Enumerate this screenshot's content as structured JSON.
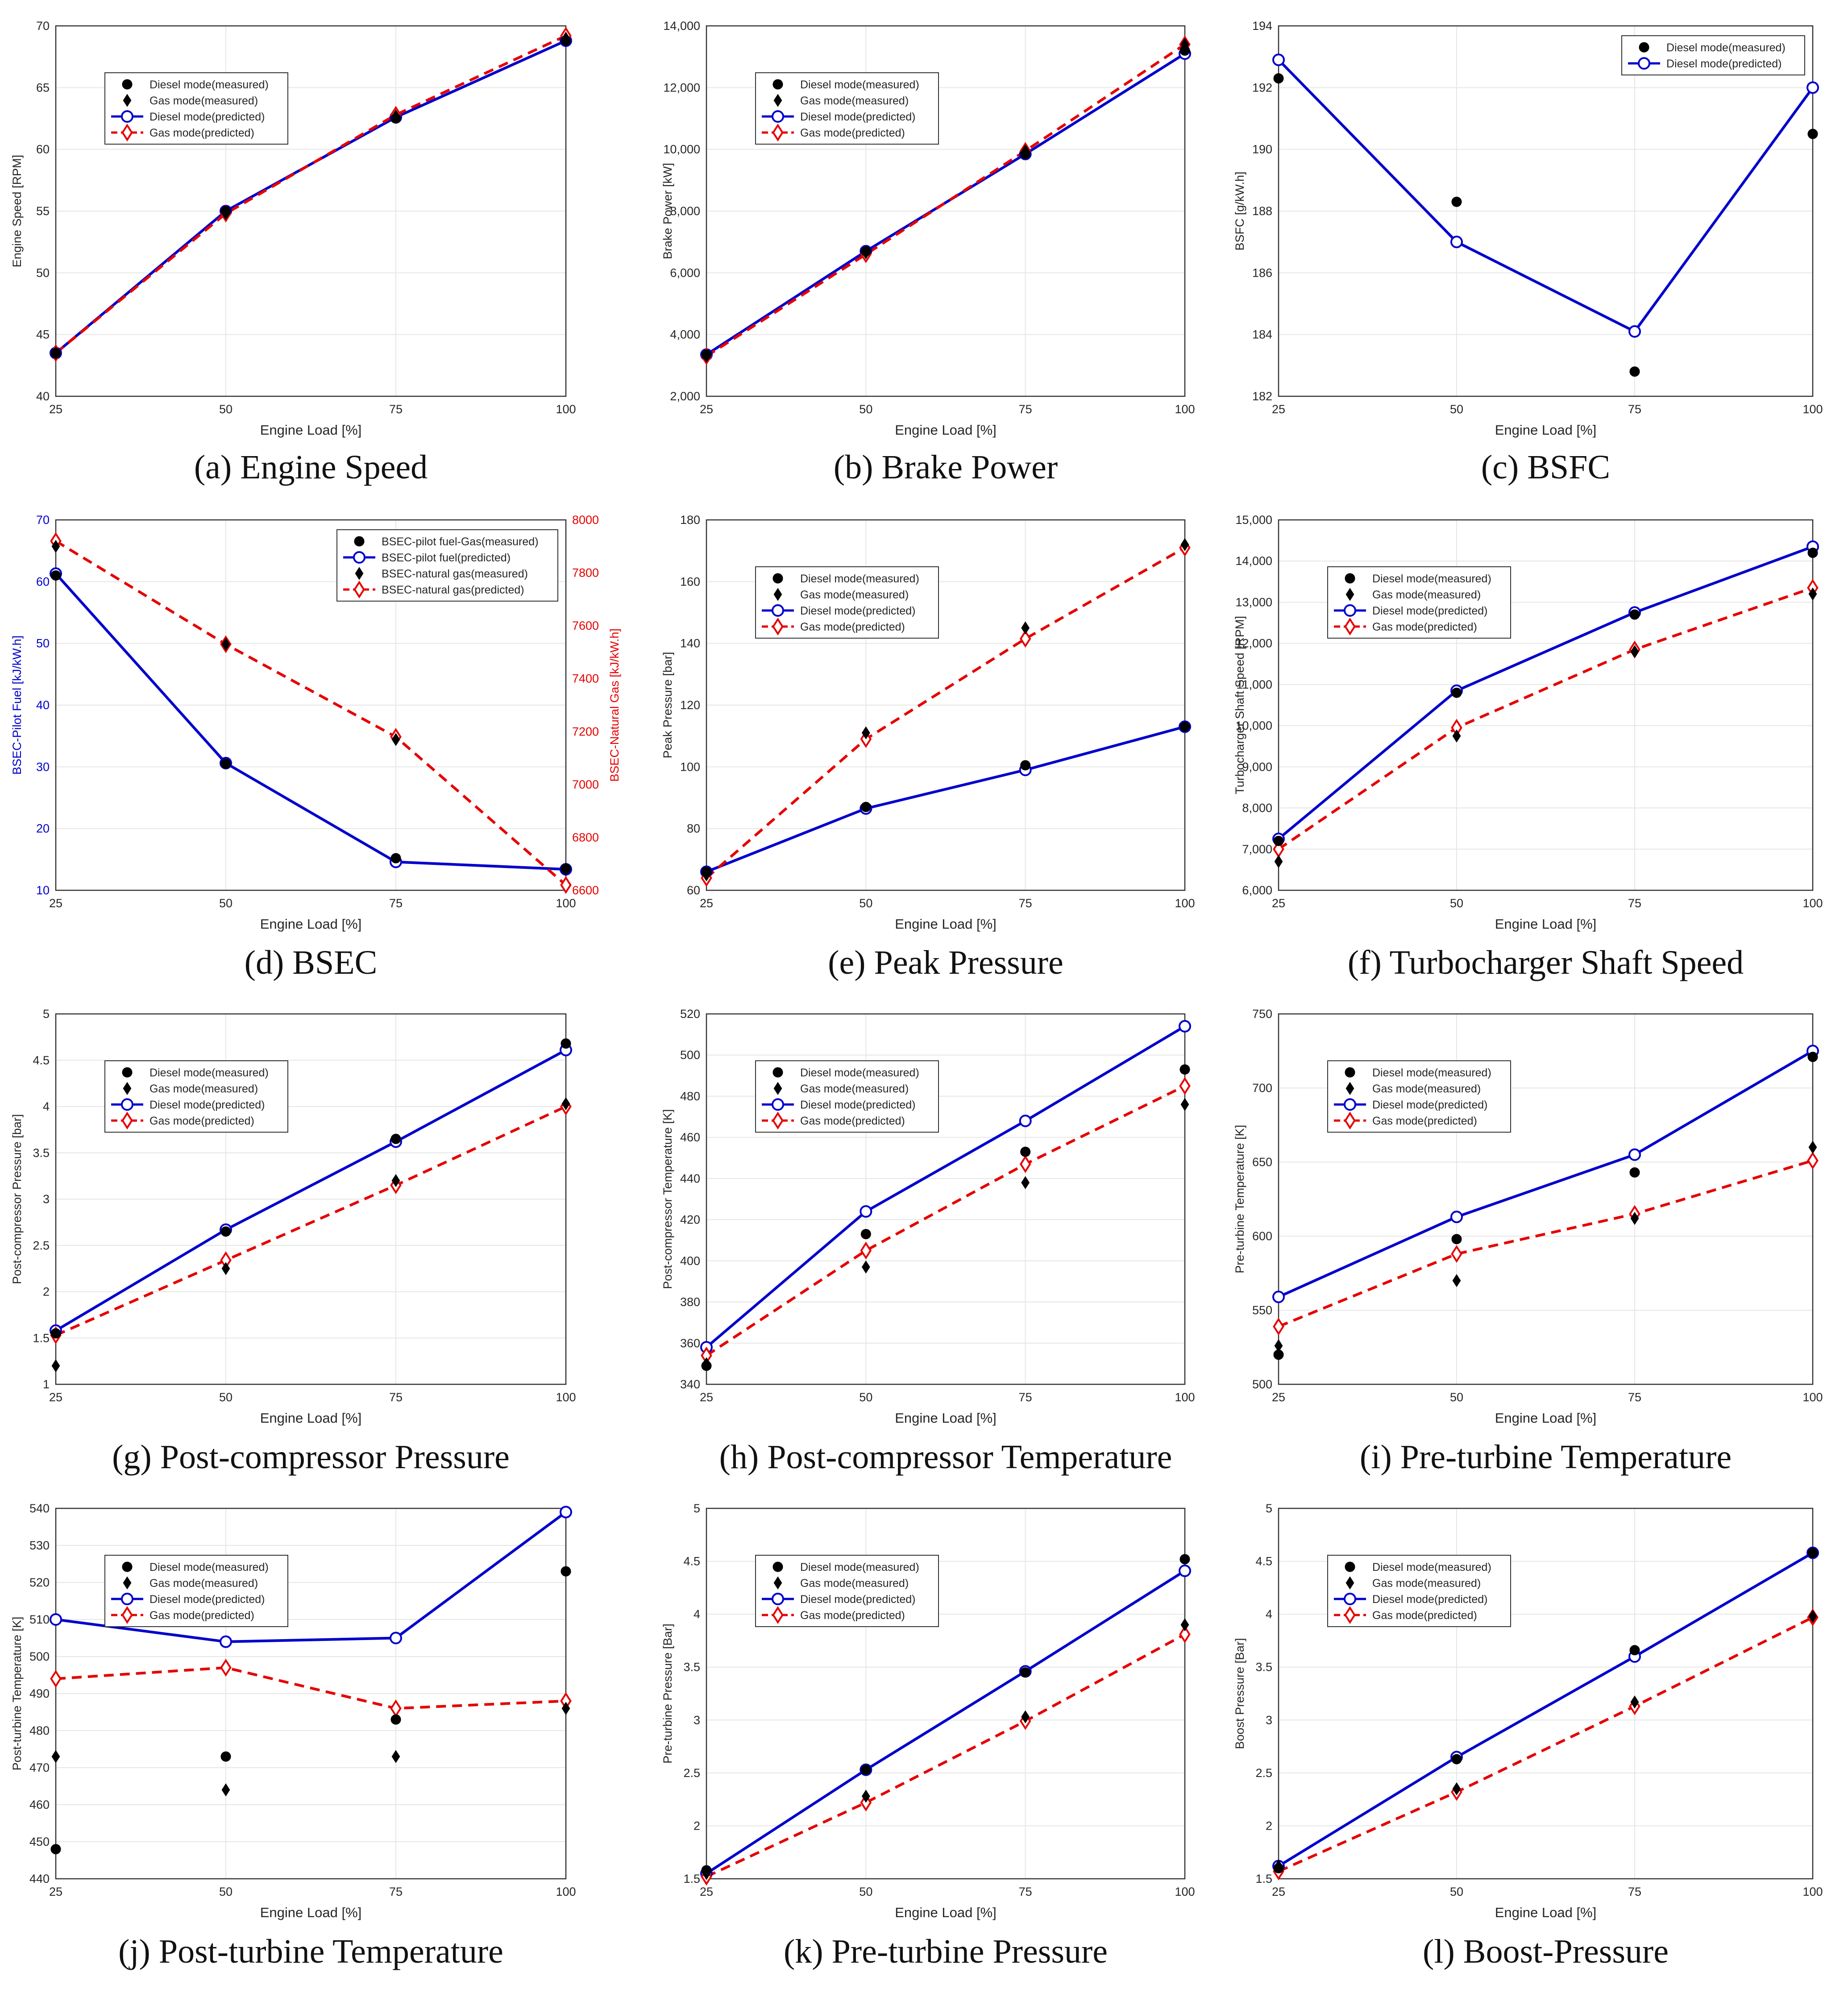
{
  "figure": {
    "background": "#ffffff"
  },
  "colors": {
    "diesel_pred": "#0000cc",
    "gas_pred": "#e60000",
    "measured": "#000000",
    "axis": "#333333",
    "grid": "#e6e6e6"
  },
  "chart_data": [
    {
      "id": "a",
      "type": "line",
      "caption": "(a) Engine Speed",
      "xlabel": "Engine Load [%]",
      "ylabel": "Engine Speed [RPM]",
      "x": [
        25,
        50,
        75,
        100
      ],
      "xticks": [
        "25",
        "50",
        "75",
        "100"
      ],
      "ylim": [
        40,
        70
      ],
      "yticks": [
        "40",
        "45",
        "50",
        "55",
        "60",
        "65",
        "70"
      ],
      "legend_position": "upper-left",
      "series": [
        {
          "name": "Diesel mode(measured)",
          "marker": "circle",
          "values": [
            43.5,
            55.0,
            62.5,
            68.8
          ]
        },
        {
          "name": "Gas mode(measured)",
          "marker": "diamond",
          "values": [
            43.5,
            54.8,
            62.7,
            69.0
          ]
        },
        {
          "name": "Diesel mode(predicted)",
          "marker": "circle-open",
          "line": "solid",
          "values": [
            43.5,
            55.0,
            62.6,
            68.8
          ]
        },
        {
          "name": "Gas mode(predicted)",
          "marker": "diamond-open",
          "line": "dashed",
          "values": [
            43.5,
            54.8,
            62.8,
            69.2
          ]
        }
      ]
    },
    {
      "id": "b",
      "type": "line",
      "caption": "(b) Brake Power",
      "xlabel": "Engine Load [%]",
      "ylabel": "Brake Power [kW]",
      "x": [
        25,
        50,
        75,
        100
      ],
      "xticks": [
        "25",
        "50",
        "75",
        "100"
      ],
      "ylim": [
        2000,
        14000
      ],
      "yticks": [
        "2,000",
        "4,000",
        "6,000",
        "8,000",
        "10,000",
        "12,000",
        "14,000"
      ],
      "legend_position": "upper-left",
      "series": [
        {
          "name": "Diesel mode(measured)",
          "marker": "circle",
          "values": [
            3350,
            6700,
            9850,
            13200
          ]
        },
        {
          "name": "Gas mode(measured)",
          "marker": "diamond",
          "values": [
            3300,
            6650,
            9950,
            13400
          ]
        },
        {
          "name": "Diesel mode(predicted)",
          "marker": "circle-open",
          "line": "solid",
          "values": [
            3350,
            6700,
            9850,
            13100
          ]
        },
        {
          "name": "Gas mode(predicted)",
          "marker": "diamond-open",
          "line": "dashed",
          "values": [
            3300,
            6600,
            9950,
            13400
          ]
        }
      ]
    },
    {
      "id": "c",
      "type": "line",
      "caption": "(c) BSFC",
      "xlabel": "Engine Load [%]",
      "ylabel": "BSFC [g/kW.h]",
      "x": [
        25,
        50,
        75,
        100
      ],
      "xticks": [
        "25",
        "50",
        "75",
        "100"
      ],
      "ylim": [
        182,
        194
      ],
      "yticks": [
        "182",
        "184",
        "186",
        "188",
        "190",
        "192",
        "194"
      ],
      "legend_position": "upper-right",
      "series": [
        {
          "name": "Diesel mode(measured)",
          "marker": "circle",
          "values": [
            192.3,
            188.3,
            182.8,
            190.5
          ]
        },
        {
          "name": "Diesel mode(predicted)",
          "marker": "circle-open",
          "line": "solid",
          "values": [
            192.9,
            187.0,
            184.1,
            192.0
          ]
        }
      ]
    },
    {
      "id": "d",
      "type": "line",
      "caption": "(d) BSEC",
      "xlabel": "Engine Load [%]",
      "ylabel": "BSEC-Pilot Fuel [kJ/kW.h]",
      "ylabel_right": "BSEC-Natural Gas [kJ/kW.h]",
      "x": [
        25,
        50,
        75,
        100
      ],
      "xticks": [
        "25",
        "50",
        "75",
        "100"
      ],
      "ylim": [
        10,
        70
      ],
      "yticks": [
        "10",
        "20",
        "30",
        "40",
        "50",
        "60",
        "70"
      ],
      "ylim_right": [
        6600,
        8000
      ],
      "yticks_right": [
        "6600",
        "6800",
        "7000",
        "7200",
        "7400",
        "7600",
        "7800",
        "8000"
      ],
      "legend_position": "upper-right",
      "series": [
        {
          "name": "BSEC-pilot fuel-Gas(measured)",
          "marker": "circle",
          "axis": "left",
          "values": [
            61.0,
            30.5,
            15.2,
            13.5
          ]
        },
        {
          "name": "BSEC-pilot fuel(predicted)",
          "marker": "circle-open",
          "line": "solid",
          "axis": "left",
          "values": [
            61.3,
            30.6,
            14.6,
            13.4
          ]
        },
        {
          "name": "BSEC-natural gas(measured)",
          "marker": "diamond",
          "axis": "right",
          "values": [
            7900,
            7530,
            7170,
            6680
          ]
        },
        {
          "name": "BSEC-natural gas(predicted)",
          "marker": "diamond-open",
          "line": "dashed",
          "axis": "right",
          "values": [
            7920,
            7530,
            7180,
            6620
          ]
        }
      ]
    },
    {
      "id": "e",
      "type": "line",
      "caption": "(e) Peak Pressure",
      "xlabel": "Engine Load [%]",
      "ylabel": "Peak Pressure [bar]",
      "x": [
        25,
        50,
        75,
        100
      ],
      "xticks": [
        "25",
        "50",
        "75",
        "100"
      ],
      "ylim": [
        60,
        180
      ],
      "yticks": [
        "60",
        "80",
        "100",
        "120",
        "140",
        "160",
        "180"
      ],
      "legend_position": "upper-left",
      "series": [
        {
          "name": "Diesel mode(measured)",
          "marker": "circle",
          "values": [
            66,
            87,
            100.5,
            113
          ]
        },
        {
          "name": "Gas mode(measured)",
          "marker": "diamond",
          "values": [
            65,
            111,
            145,
            172
          ]
        },
        {
          "name": "Diesel mode(predicted)",
          "marker": "circle-open",
          "line": "solid",
          "values": [
            66,
            86.5,
            99,
            113
          ]
        },
        {
          "name": "Gas mode(predicted)",
          "marker": "diamond-open",
          "line": "dashed",
          "values": [
            64,
            109,
            141.5,
            171
          ]
        }
      ]
    },
    {
      "id": "f",
      "type": "line",
      "caption": "(f) Turbocharger Shaft Speed",
      "xlabel": "Engine Load [%]",
      "ylabel": "Turbocharger Shaft Speed [RPM]",
      "x": [
        25,
        50,
        75,
        100
      ],
      "xticks": [
        "25",
        "50",
        "75",
        "100"
      ],
      "ylim": [
        6000,
        15000
      ],
      "yticks": [
        "6,000",
        "7,000",
        "8,000",
        "9,000",
        "10,000",
        "11,000",
        "12,000",
        "13,000",
        "14,000",
        "15,000"
      ],
      "legend_position": "upper-left",
      "series": [
        {
          "name": "Diesel mode(measured)",
          "marker": "circle",
          "values": [
            7200,
            10800,
            12700,
            14200
          ]
        },
        {
          "name": "Gas mode(measured)",
          "marker": "diamond",
          "values": [
            6700,
            9750,
            11800,
            13200
          ]
        },
        {
          "name": "Diesel mode(predicted)",
          "marker": "circle-open",
          "line": "solid",
          "values": [
            7250,
            10850,
            12750,
            14350
          ]
        },
        {
          "name": "Gas mode(predicted)",
          "marker": "diamond-open",
          "line": "dashed",
          "values": [
            7000,
            9950,
            11850,
            13350
          ]
        }
      ]
    },
    {
      "id": "g",
      "type": "line",
      "caption": "(g) Post-compressor Pressure",
      "xlabel": "Engine Load [%]",
      "ylabel": "Post-compressor Pressure [bar]",
      "x": [
        25,
        50,
        75,
        100
      ],
      "xticks": [
        "25",
        "50",
        "75",
        "100"
      ],
      "ylim": [
        1,
        5
      ],
      "yticks": [
        "1",
        "1.5",
        "2",
        "2.5",
        "3",
        "3.5",
        "4",
        "4.5",
        "5"
      ],
      "legend_position": "upper-left",
      "series": [
        {
          "name": "Diesel mode(measured)",
          "marker": "circle",
          "values": [
            1.55,
            2.65,
            3.65,
            4.68
          ]
        },
        {
          "name": "Gas mode(measured)",
          "marker": "diamond",
          "values": [
            1.2,
            2.25,
            3.2,
            4.03
          ]
        },
        {
          "name": "Diesel mode(predicted)",
          "marker": "circle-open",
          "line": "solid",
          "values": [
            1.58,
            2.67,
            3.62,
            4.61
          ]
        },
        {
          "name": "Gas mode(predicted)",
          "marker": "diamond-open",
          "line": "dashed",
          "values": [
            1.53,
            2.34,
            3.15,
            4.0
          ]
        }
      ]
    },
    {
      "id": "h",
      "type": "line",
      "caption": "(h) Post-compressor Temperature",
      "xlabel": "Engine Load [%]",
      "ylabel": "Post-compressor Temperature [K]",
      "x": [
        25,
        50,
        75,
        100
      ],
      "xticks": [
        "25",
        "50",
        "75",
        "100"
      ],
      "ylim": [
        340,
        520
      ],
      "yticks": [
        "340",
        "360",
        "380",
        "400",
        "420",
        "440",
        "460",
        "480",
        "500",
        "520"
      ],
      "legend_position": "upper-left",
      "series": [
        {
          "name": "Diesel mode(measured)",
          "marker": "circle",
          "values": [
            349,
            413,
            453,
            493
          ]
        },
        {
          "name": "Gas mode(measured)",
          "marker": "diamond",
          "values": [
            350,
            397,
            438,
            476
          ]
        },
        {
          "name": "Diesel mode(predicted)",
          "marker": "circle-open",
          "line": "solid",
          "values": [
            358,
            424,
            468,
            514
          ]
        },
        {
          "name": "Gas mode(predicted)",
          "marker": "diamond-open",
          "line": "dashed",
          "values": [
            354,
            405,
            447,
            485
          ]
        }
      ]
    },
    {
      "id": "i",
      "type": "line",
      "caption": "(i) Pre-turbine Temperature",
      "xlabel": "Engine Load [%]",
      "ylabel": "Pre-turbine Temperature [K]",
      "x": [
        25,
        50,
        75,
        100
      ],
      "xticks": [
        "25",
        "50",
        "75",
        "100"
      ],
      "ylim": [
        500,
        750
      ],
      "yticks": [
        "500",
        "550",
        "600",
        "650",
        "700",
        "750"
      ],
      "legend_position": "upper-left",
      "series": [
        {
          "name": "Diesel mode(measured)",
          "marker": "circle",
          "values": [
            520,
            598,
            643,
            721
          ]
        },
        {
          "name": "Gas mode(measured)",
          "marker": "diamond",
          "values": [
            526,
            570,
            612,
            660
          ]
        },
        {
          "name": "Diesel mode(predicted)",
          "marker": "circle-open",
          "line": "solid",
          "values": [
            559,
            613,
            655,
            725
          ]
        },
        {
          "name": "Gas mode(predicted)",
          "marker": "diamond-open",
          "line": "dashed",
          "values": [
            539,
            588,
            615,
            651
          ]
        }
      ]
    },
    {
      "id": "j",
      "type": "line",
      "caption": "(j) Post-turbine Temperature",
      "xlabel": "Engine Load [%]",
      "ylabel": "Post-turbine Temperature [K]",
      "x": [
        25,
        50,
        75,
        100
      ],
      "xticks": [
        "25",
        "50",
        "75",
        "100"
      ],
      "ylim": [
        440,
        540
      ],
      "yticks": [
        "440",
        "450",
        "460",
        "470",
        "480",
        "490",
        "500",
        "510",
        "520",
        "530",
        "540"
      ],
      "legend_position": "upper-left",
      "series": [
        {
          "name": "Diesel mode(measured)",
          "marker": "circle",
          "values": [
            448,
            473,
            483,
            523
          ]
        },
        {
          "name": "Gas mode(measured)",
          "marker": "diamond",
          "values": [
            473,
            464,
            473,
            486
          ]
        },
        {
          "name": "Diesel mode(predicted)",
          "marker": "circle-open",
          "line": "solid",
          "values": [
            510,
            504,
            505,
            539
          ]
        },
        {
          "name": "Gas mode(predicted)",
          "marker": "diamond-open",
          "line": "dashed",
          "values": [
            494,
            497,
            486,
            488
          ]
        }
      ]
    },
    {
      "id": "k",
      "type": "line",
      "caption": "(k) Pre-turbine Pressure",
      "xlabel": "Engine Load [%]",
      "ylabel": "Pre-turbine Pressure [Bar]",
      "x": [
        25,
        50,
        75,
        100
      ],
      "xticks": [
        "25",
        "50",
        "75",
        "100"
      ],
      "ylim": [
        1.5,
        5
      ],
      "yticks": [
        "1.5",
        "2",
        "2.5",
        "3",
        "3.5",
        "4",
        "4.5",
        "5"
      ],
      "legend_position": "upper-left",
      "series": [
        {
          "name": "Diesel mode(measured)",
          "marker": "circle",
          "values": [
            1.58,
            2.53,
            3.45,
            4.52
          ]
        },
        {
          "name": "Gas mode(measured)",
          "marker": "diamond",
          "values": [
            1.55,
            2.28,
            3.03,
            3.9
          ]
        },
        {
          "name": "Diesel mode(predicted)",
          "marker": "circle-open",
          "line": "solid",
          "values": [
            1.55,
            2.53,
            3.46,
            4.41
          ]
        },
        {
          "name": "Gas mode(predicted)",
          "marker": "diamond-open",
          "line": "dashed",
          "values": [
            1.52,
            2.22,
            2.99,
            3.81
          ]
        }
      ]
    },
    {
      "id": "l",
      "type": "line",
      "caption": "(l) Boost-Pressure",
      "xlabel": "Engine Load [%]",
      "ylabel": "Boost Pressure [Bar]",
      "x": [
        25,
        50,
        75,
        100
      ],
      "xticks": [
        "25",
        "50",
        "75",
        "100"
      ],
      "ylim": [
        1.5,
        5
      ],
      "yticks": [
        "1.5",
        "2",
        "2.5",
        "3",
        "3.5",
        "4",
        "4.5",
        "5"
      ],
      "legend_position": "upper-left",
      "series": [
        {
          "name": "Diesel mode(measured)",
          "marker": "circle",
          "values": [
            1.6,
            2.63,
            3.66,
            4.58
          ]
        },
        {
          "name": "Gas mode(measured)",
          "marker": "diamond",
          "values": [
            1.62,
            2.35,
            3.17,
            3.98
          ]
        },
        {
          "name": "Diesel mode(predicted)",
          "marker": "circle-open",
          "line": "solid",
          "values": [
            1.62,
            2.65,
            3.6,
            4.58
          ]
        },
        {
          "name": "Gas mode(predicted)",
          "marker": "diamond-open",
          "line": "dashed",
          "values": [
            1.57,
            2.32,
            3.13,
            3.97
          ]
        }
      ]
    }
  ]
}
